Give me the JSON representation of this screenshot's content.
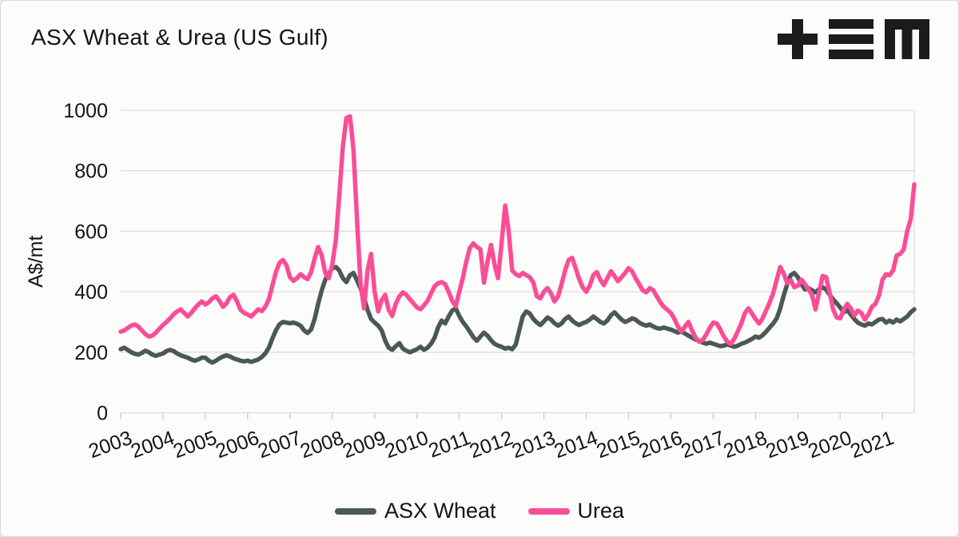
{
  "header": {
    "title": "ASX Wheat & Urea (US Gulf)",
    "logo": "tem-logo"
  },
  "chart_data": {
    "type": "line",
    "title": "ASX Wheat & Urea (US Gulf)",
    "xlabel": "",
    "ylabel": "A$/mt",
    "ylim": [
      0,
      1000
    ],
    "yticks": [
      0,
      200,
      400,
      600,
      800,
      1000
    ],
    "x_labels": [
      "2003",
      "2004",
      "2005",
      "2006",
      "2007",
      "2008",
      "2009",
      "2010",
      "2011",
      "2012",
      "2013",
      "2014",
      "2015",
      "2016",
      "2017",
      "2018",
      "2019",
      "2020",
      "2021"
    ],
    "x_interval": "monthly",
    "x_range": "Jan 2003 - Oct 2021",
    "grid": "horizontal",
    "legend_position": "bottom",
    "colors": {
      "grid": "#DEDEDA",
      "axis_text": "#141414",
      "background": "#FCFCFA"
    },
    "series": [
      {
        "name": "ASX Wheat",
        "color": "#4A5954",
        "values": [
          210,
          215,
          208,
          200,
          195,
          192,
          198,
          205,
          200,
          192,
          188,
          192,
          196,
          204,
          208,
          204,
          196,
          190,
          186,
          182,
          176,
          172,
          176,
          182,
          182,
          172,
          166,
          172,
          180,
          186,
          190,
          186,
          180,
          176,
          172,
          170,
          172,
          168,
          172,
          176,
          184,
          196,
          215,
          245,
          272,
          292,
          300,
          298,
          296,
          298,
          294,
          288,
          272,
          264,
          275,
          310,
          360,
          405,
          440,
          460,
          478,
          482,
          470,
          445,
          432,
          455,
          462,
          438,
          412,
          380,
          340,
          310,
          298,
          288,
          272,
          238,
          215,
          208,
          220,
          230,
          212,
          205,
          200,
          205,
          210,
          218,
          208,
          215,
          228,
          248,
          282,
          305,
          295,
          318,
          338,
          345,
          320,
          300,
          285,
          268,
          250,
          238,
          252,
          265,
          255,
          240,
          228,
          222,
          218,
          212,
          215,
          210,
          225,
          272,
          318,
          335,
          328,
          310,
          298,
          290,
          302,
          315,
          308,
          296,
          288,
          295,
          310,
          318,
          305,
          296,
          290,
          296,
          300,
          308,
          318,
          310,
          300,
          295,
          305,
          322,
          332,
          320,
          308,
          300,
          305,
          312,
          308,
          298,
          292,
          288,
          292,
          285,
          280,
          278,
          282,
          278,
          275,
          270,
          265,
          268,
          262,
          255,
          248,
          242,
          238,
          232,
          228,
          232,
          228,
          224,
          220,
          222,
          226,
          222,
          218,
          222,
          228,
          232,
          238,
          244,
          252,
          248,
          256,
          268,
          282,
          295,
          312,
          345,
          388,
          425,
          455,
          462,
          448,
          425,
          408,
          412,
          405,
          398,
          408,
          415,
          408,
          390,
          375,
          362,
          348,
          332,
          340,
          325,
          310,
          298,
          292,
          288,
          295,
          292,
          300,
          308,
          310,
          298,
          305,
          298,
          308,
          302,
          310,
          318,
          332,
          342
        ]
      },
      {
        "name": "Urea",
        "color": "#FA4D97",
        "values": [
          268,
          272,
          280,
          288,
          292,
          285,
          272,
          260,
          252,
          255,
          265,
          278,
          290,
          300,
          312,
          325,
          335,
          342,
          330,
          318,
          330,
          345,
          358,
          368,
          358,
          365,
          378,
          385,
          370,
          350,
          362,
          382,
          390,
          368,
          340,
          330,
          325,
          318,
          330,
          342,
          336,
          350,
          375,
          420,
          465,
          495,
          505,
          488,
          448,
          436,
          445,
          458,
          448,
          442,
          465,
          510,
          548,
          520,
          462,
          445,
          490,
          570,
          720,
          880,
          975,
          980,
          870,
          640,
          430,
          345,
          470,
          525,
          400,
          335,
          372,
          390,
          340,
          320,
          360,
          385,
          398,
          390,
          375,
          362,
          348,
          342,
          355,
          370,
          395,
          418,
          428,
          432,
          425,
          400,
          370,
          352,
          400,
          445,
          500,
          545,
          560,
          548,
          540,
          430,
          500,
          555,
          490,
          445,
          560,
          685,
          600,
          470,
          458,
          452,
          462,
          455,
          448,
          430,
          385,
          378,
          400,
          412,
          395,
          368,
          385,
          425,
          470,
          505,
          512,
          478,
          442,
          415,
          400,
          420,
          455,
          465,
          440,
          422,
          445,
          468,
          452,
          435,
          448,
          462,
          478,
          468,
          445,
          425,
          405,
          398,
          412,
          405,
          385,
          365,
          350,
          340,
          330,
          310,
          285,
          268,
          285,
          300,
          272,
          248,
          235,
          240,
          258,
          280,
          298,
          295,
          275,
          252,
          235,
          228,
          245,
          270,
          295,
          330,
          345,
          328,
          310,
          295,
          312,
          338,
          365,
          395,
          440,
          482,
          460,
          428,
          438,
          415,
          420,
          440,
          425,
          408,
          390,
          342,
          395,
          452,
          448,
          398,
          342,
          315,
          312,
          340,
          360,
          345,
          322,
          338,
          330,
          308,
          325,
          350,
          360,
          388,
          440,
          458,
          455,
          470,
          520,
          525,
          540,
          600,
          640,
          755
        ]
      }
    ]
  },
  "legend": {
    "items": [
      {
        "label": "ASX Wheat"
      },
      {
        "label": "Urea"
      }
    ]
  }
}
